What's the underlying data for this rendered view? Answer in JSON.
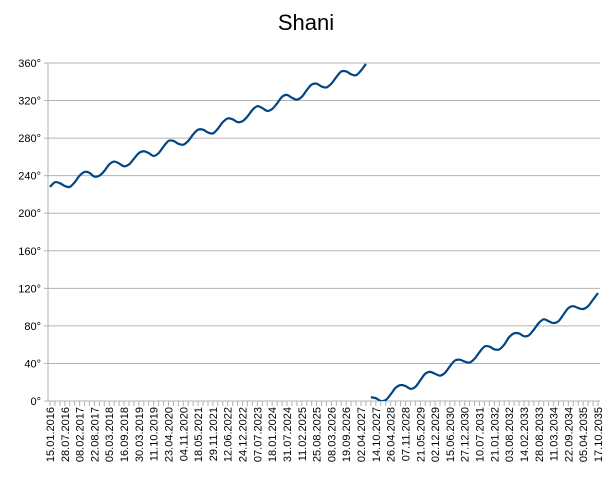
{
  "chart_data": {
    "type": "line",
    "title": "Shani",
    "categories": [
      "15.01.2016",
      null,
      null,
      "28.07.2016",
      null,
      null,
      "08.02.2017",
      null,
      null,
      "22.08.2017",
      null,
      null,
      "05.03.2018",
      null,
      null,
      "16.09.2018",
      null,
      null,
      "30.03.2019",
      null,
      null,
      "11.10.2019",
      null,
      null,
      "23.04.2020",
      null,
      null,
      "04.11.2020",
      null,
      null,
      "18.05.2021",
      null,
      null,
      "29.11.2021",
      null,
      null,
      "12.06.2022",
      null,
      null,
      "24.12.2022",
      null,
      null,
      "07.07.2023",
      null,
      null,
      "18.01.2024",
      null,
      null,
      "31.07.2024",
      null,
      null,
      "11.02.2025",
      null,
      null,
      "25.08.2025",
      null,
      null,
      "08.03.2026",
      null,
      null,
      "19.09.2026",
      null,
      null,
      "02.04.2027",
      null,
      null,
      "14.10.2027",
      null,
      null,
      "26.04.2028",
      null,
      null,
      "07.11.2028",
      null,
      null,
      "21.05.2029",
      null,
      null,
      "02.12.2029",
      null,
      null,
      "15.06.2030",
      null,
      null,
      "27.12.2030",
      null,
      null,
      "10.07.2031",
      null,
      null,
      "21.01.2032",
      null,
      null,
      "03.08.2032",
      null,
      null,
      "14.02.2033",
      null,
      null,
      "28.08.2033",
      null,
      null,
      "11.03.2034",
      null,
      null,
      "22.09.2034",
      null,
      null,
      "05.04.2035",
      null,
      null,
      "17.10.2035"
    ],
    "series": [
      {
        "name": null,
        "color": "#004586",
        "values": [
          228,
          233,
          232,
          229,
          228,
          233,
          240,
          244,
          243,
          239,
          240,
          245,
          252,
          255,
          253,
          250,
          252,
          258,
          264,
          266,
          264,
          261,
          264,
          271,
          277,
          277,
          274,
          273,
          277,
          284,
          289,
          289,
          286,
          285,
          290,
          297,
          301,
          300,
          297,
          298,
          303,
          310,
          314,
          312,
          309,
          311,
          317,
          324,
          326,
          323,
          321,
          324,
          331,
          337,
          338,
          335,
          334,
          338,
          345,
          351,
          351,
          348,
          347,
          352,
          359,
          4,
          3,
          0,
          1,
          7,
          14,
          17,
          16,
          13,
          15,
          22,
          29,
          31,
          29,
          27,
          30,
          37,
          43,
          44,
          42,
          41,
          45,
          52,
          58,
          58,
          55,
          55,
          60,
          68,
          72,
          72,
          69,
          70,
          76,
          83,
          87,
          85,
          83,
          85,
          92,
          99,
          101,
          99,
          98,
          101,
          108,
          115
        ]
      }
    ],
    "ylim": [
      0,
      360
    ],
    "yticks": [
      {
        "value": 0,
        "label": "0°"
      },
      {
        "value": 40,
        "label": "40°"
      },
      {
        "value": 80,
        "label": "80°"
      },
      {
        "value": 120,
        "label": "120°"
      },
      {
        "value": 160,
        "label": "160°"
      },
      {
        "value": 200,
        "label": "200°"
      },
      {
        "value": 240,
        "label": "240°"
      },
      {
        "value": 280,
        "label": "280°"
      },
      {
        "value": 320,
        "label": "320°"
      },
      {
        "value": 360,
        "label": "360°"
      }
    ],
    "grid": true
  }
}
